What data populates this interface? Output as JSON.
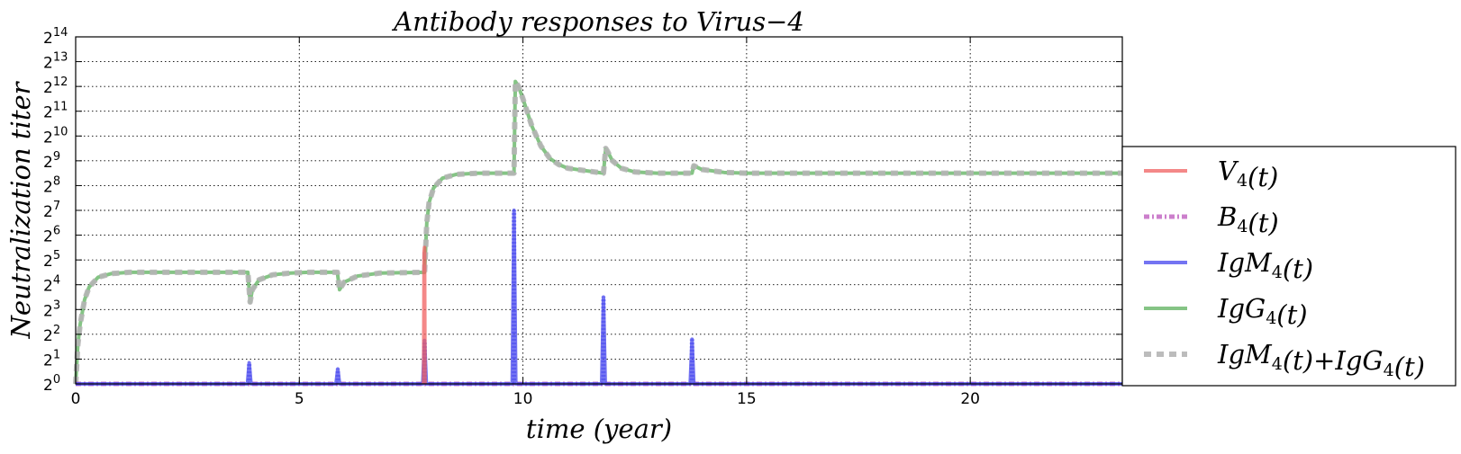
{
  "chart_data": {
    "type": "line",
    "title": "Antibody responses to Virus−4",
    "xlabel": "time (year)",
    "ylabel": "Neutralization  titer",
    "y_scale": "log2",
    "xlim": [
      0,
      23.4
    ],
    "ylim_log2": [
      0,
      14
    ],
    "grid": true,
    "legend_position": "right",
    "x_ticks": [
      0,
      5,
      10,
      15,
      20
    ],
    "y_ticks": [
      {
        "base": "2",
        "exp": "0"
      },
      {
        "base": "2",
        "exp": "1"
      },
      {
        "base": "2",
        "exp": "2"
      },
      {
        "base": "2",
        "exp": "3"
      },
      {
        "base": "2",
        "exp": "4"
      },
      {
        "base": "2",
        "exp": "5"
      },
      {
        "base": "2",
        "exp": "6"
      },
      {
        "base": "2",
        "exp": "7"
      },
      {
        "base": "2",
        "exp": "8"
      },
      {
        "base": "2",
        "exp": "9"
      },
      {
        "base": "2",
        "exp": "10"
      },
      {
        "base": "2",
        "exp": "11"
      },
      {
        "base": "2",
        "exp": "12"
      },
      {
        "base": "2",
        "exp": "13"
      },
      {
        "base": "2",
        "exp": "14"
      }
    ],
    "series": [
      {
        "name": "V4(t)",
        "legend_parts": [
          {
            "t": "V"
          },
          {
            "t": "4",
            "sub": true
          },
          {
            "t": "(t)"
          }
        ],
        "color": "#f06060",
        "style": "solid",
        "x": [
          7.78,
          7.79,
          7.8,
          7.81
        ],
        "y_log2": [
          0,
          5.3,
          5.5,
          0
        ]
      },
      {
        "name": "B4(t)",
        "legend_parts": [
          {
            "t": "B"
          },
          {
            "t": "4",
            "sub": true
          },
          {
            "t": "(t)"
          }
        ],
        "color": "#bf5fbf",
        "style": "dashdot",
        "x": [
          0,
          23.4
        ],
        "y_log2": [
          0,
          0
        ]
      },
      {
        "name": "IgM4(t)",
        "legend_parts": [
          {
            "t": "IgM"
          },
          {
            "t": "4",
            "sub": true
          },
          {
            "t": "(t)"
          }
        ],
        "color": "#4646ee",
        "style": "solid",
        "x": [
          0,
          3.84,
          3.88,
          3.92,
          5.82,
          5.86,
          5.9,
          7.76,
          7.8,
          7.84,
          9.76,
          9.8,
          9.84,
          11.76,
          11.8,
          11.84,
          13.74,
          13.78,
          13.82,
          23.4
        ],
        "y_log2": [
          0,
          0,
          0.85,
          0,
          0,
          0.6,
          0,
          0,
          1.75,
          0,
          0,
          7.0,
          0,
          0,
          3.5,
          0,
          0,
          1.8,
          0,
          0
        ]
      },
      {
        "name": "IgG4(t)",
        "legend_parts": [
          {
            "t": "IgG"
          },
          {
            "t": "4",
            "sub": true
          },
          {
            "t": "(t)"
          }
        ],
        "color": "#5cb05c",
        "style": "solid",
        "x": [
          0,
          0.05,
          0.1,
          0.2,
          0.3,
          0.5,
          0.8,
          1.2,
          3.85,
          3.9,
          3.95,
          4.1,
          4.4,
          4.8,
          5.2,
          5.85,
          5.9,
          6.0,
          6.3,
          6.8,
          7.8,
          7.85,
          7.9,
          8.0,
          8.2,
          8.5,
          9.0,
          9.8,
          9.83,
          9.9,
          10.0,
          10.2,
          10.4,
          10.6,
          10.8,
          11.0,
          11.8,
          11.85,
          11.9,
          12.0,
          12.2,
          12.5,
          13.0,
          13.78,
          13.82,
          14.0,
          14.5,
          15.0,
          23.4
        ],
        "y_log2": [
          0,
          1.6,
          2.4,
          3.4,
          3.9,
          4.3,
          4.45,
          4.5,
          4.5,
          3.3,
          3.8,
          4.2,
          4.4,
          4.47,
          4.5,
          4.5,
          3.8,
          4.1,
          4.35,
          4.47,
          4.5,
          6.5,
          7.3,
          7.9,
          8.3,
          8.45,
          8.5,
          8.5,
          12.2,
          12.0,
          11.5,
          10.4,
          9.6,
          9.1,
          8.85,
          8.7,
          8.5,
          9.5,
          9.35,
          9.0,
          8.7,
          8.55,
          8.5,
          8.5,
          8.8,
          8.65,
          8.53,
          8.5,
          8.5
        ]
      },
      {
        "name": "IgM4(t)+IgG4(t)",
        "legend_parts": [
          {
            "t": "IgM"
          },
          {
            "t": "4",
            "sub": true
          },
          {
            "t": "(t)+IgG"
          },
          {
            "t": "4",
            "sub": true
          },
          {
            "t": "(t)"
          }
        ],
        "color": "#b5b5b5",
        "style": "dashed",
        "x": [
          0,
          0.05,
          0.1,
          0.2,
          0.3,
          0.5,
          0.8,
          1.2,
          3.85,
          3.9,
          3.95,
          4.1,
          4.4,
          4.8,
          5.2,
          5.85,
          5.9,
          6.0,
          6.3,
          6.8,
          7.8,
          7.85,
          7.9,
          8.0,
          8.2,
          8.5,
          9.0,
          9.8,
          9.83,
          9.9,
          10.0,
          10.2,
          10.4,
          10.6,
          10.8,
          11.0,
          11.8,
          11.85,
          11.9,
          12.0,
          12.2,
          12.5,
          13.0,
          13.78,
          13.82,
          14.0,
          14.5,
          15.0,
          23.4
        ],
        "y_log2": [
          0,
          1.6,
          2.4,
          3.4,
          3.9,
          4.3,
          4.45,
          4.5,
          4.5,
          3.3,
          3.8,
          4.2,
          4.4,
          4.47,
          4.5,
          4.5,
          3.8,
          4.1,
          4.35,
          4.47,
          4.5,
          6.5,
          7.3,
          7.9,
          8.3,
          8.45,
          8.5,
          8.5,
          12.2,
          12.0,
          11.5,
          10.4,
          9.6,
          9.1,
          8.85,
          8.7,
          8.5,
          9.5,
          9.35,
          9.0,
          8.7,
          8.55,
          8.5,
          8.5,
          8.8,
          8.65,
          8.53,
          8.5,
          8.5
        ]
      }
    ]
  }
}
